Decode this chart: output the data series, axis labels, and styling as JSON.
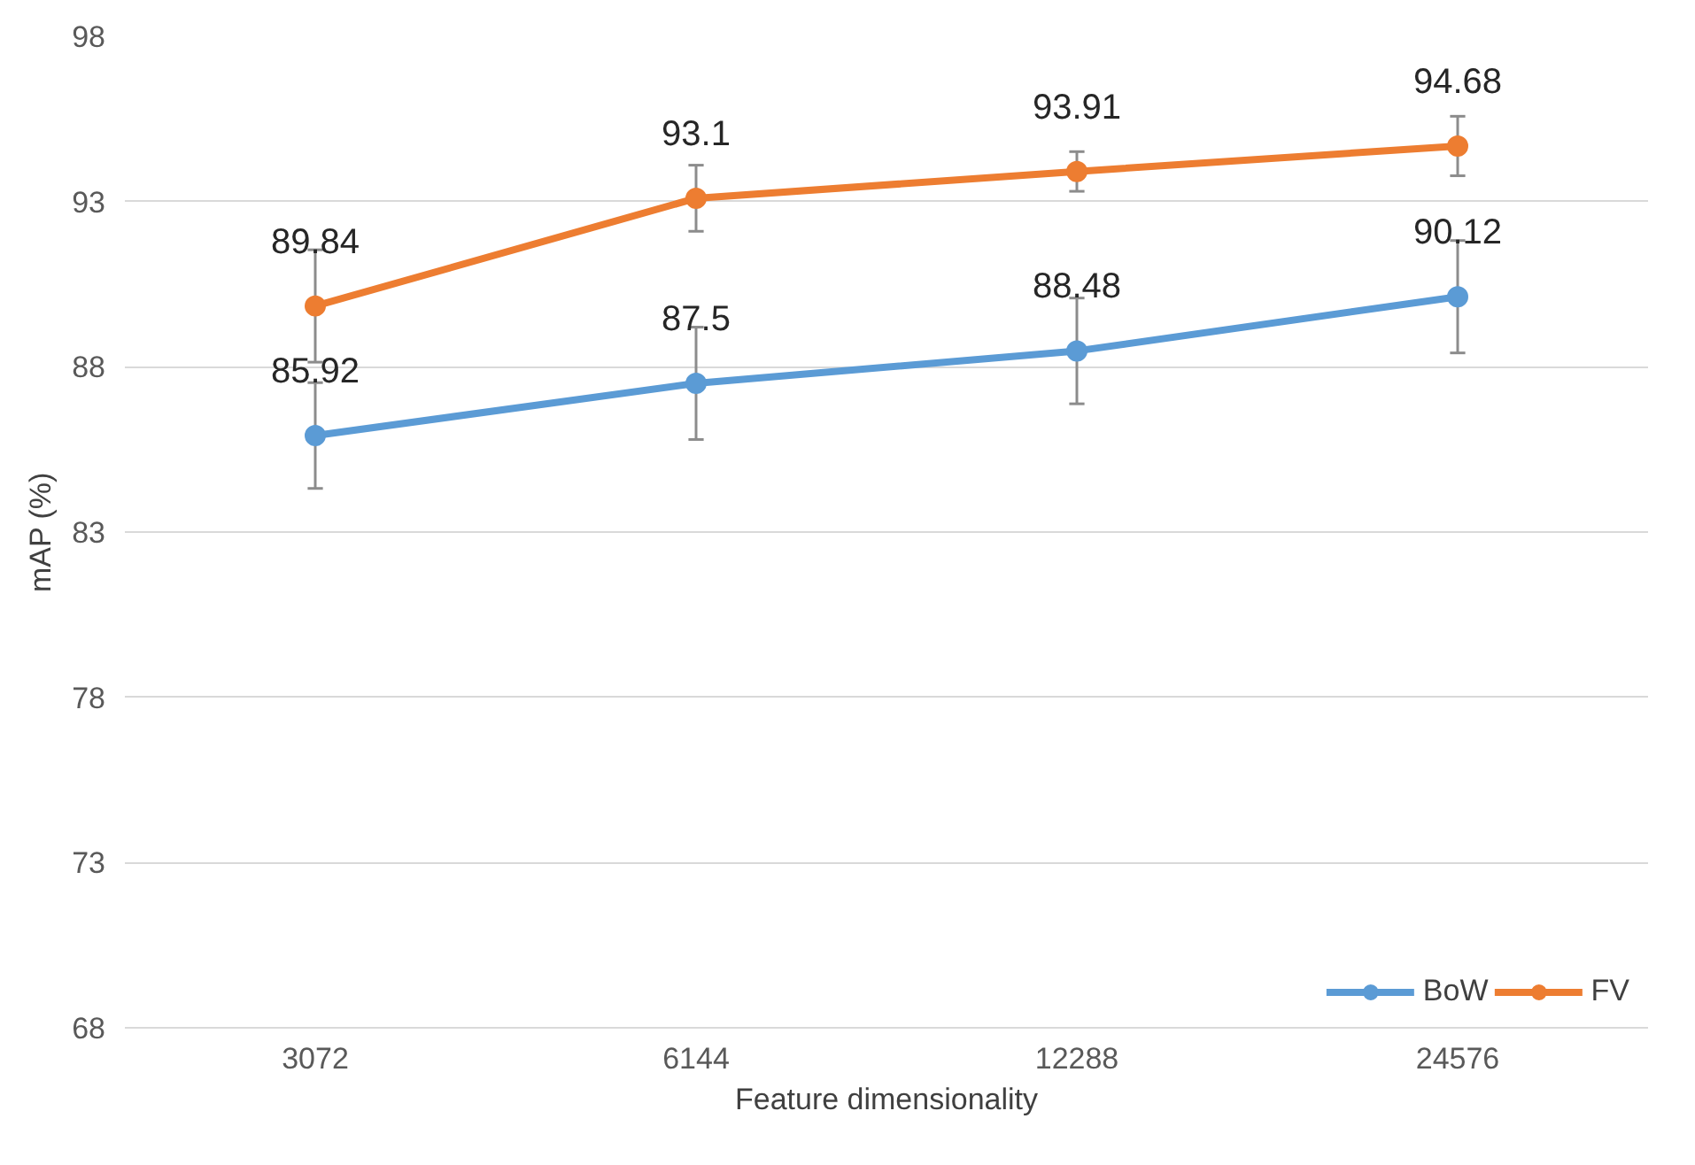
{
  "chart_data": {
    "type": "line",
    "xlabel": "Feature dimensionality",
    "ylabel": "mAP (%)",
    "categories": [
      "3072",
      "6144",
      "12288",
      "24576"
    ],
    "series": [
      {
        "name": "BoW",
        "color": "#5b9bd5",
        "values": [
          85.92,
          87.5,
          88.48,
          90.12
        ],
        "errors": [
          1.6,
          1.7,
          1.6,
          1.7
        ]
      },
      {
        "name": "FV",
        "color": "#ed7d31",
        "values": [
          89.84,
          93.1,
          93.91,
          94.68
        ],
        "errors": [
          1.7,
          1.0,
          0.6,
          0.9
        ]
      }
    ],
    "ylim": [
      68,
      98
    ],
    "yticks": [
      68,
      73,
      78,
      83,
      88,
      93,
      98
    ],
    "grid": "y",
    "legend": "bottom right",
    "marker": "circle",
    "data_labels": true
  }
}
